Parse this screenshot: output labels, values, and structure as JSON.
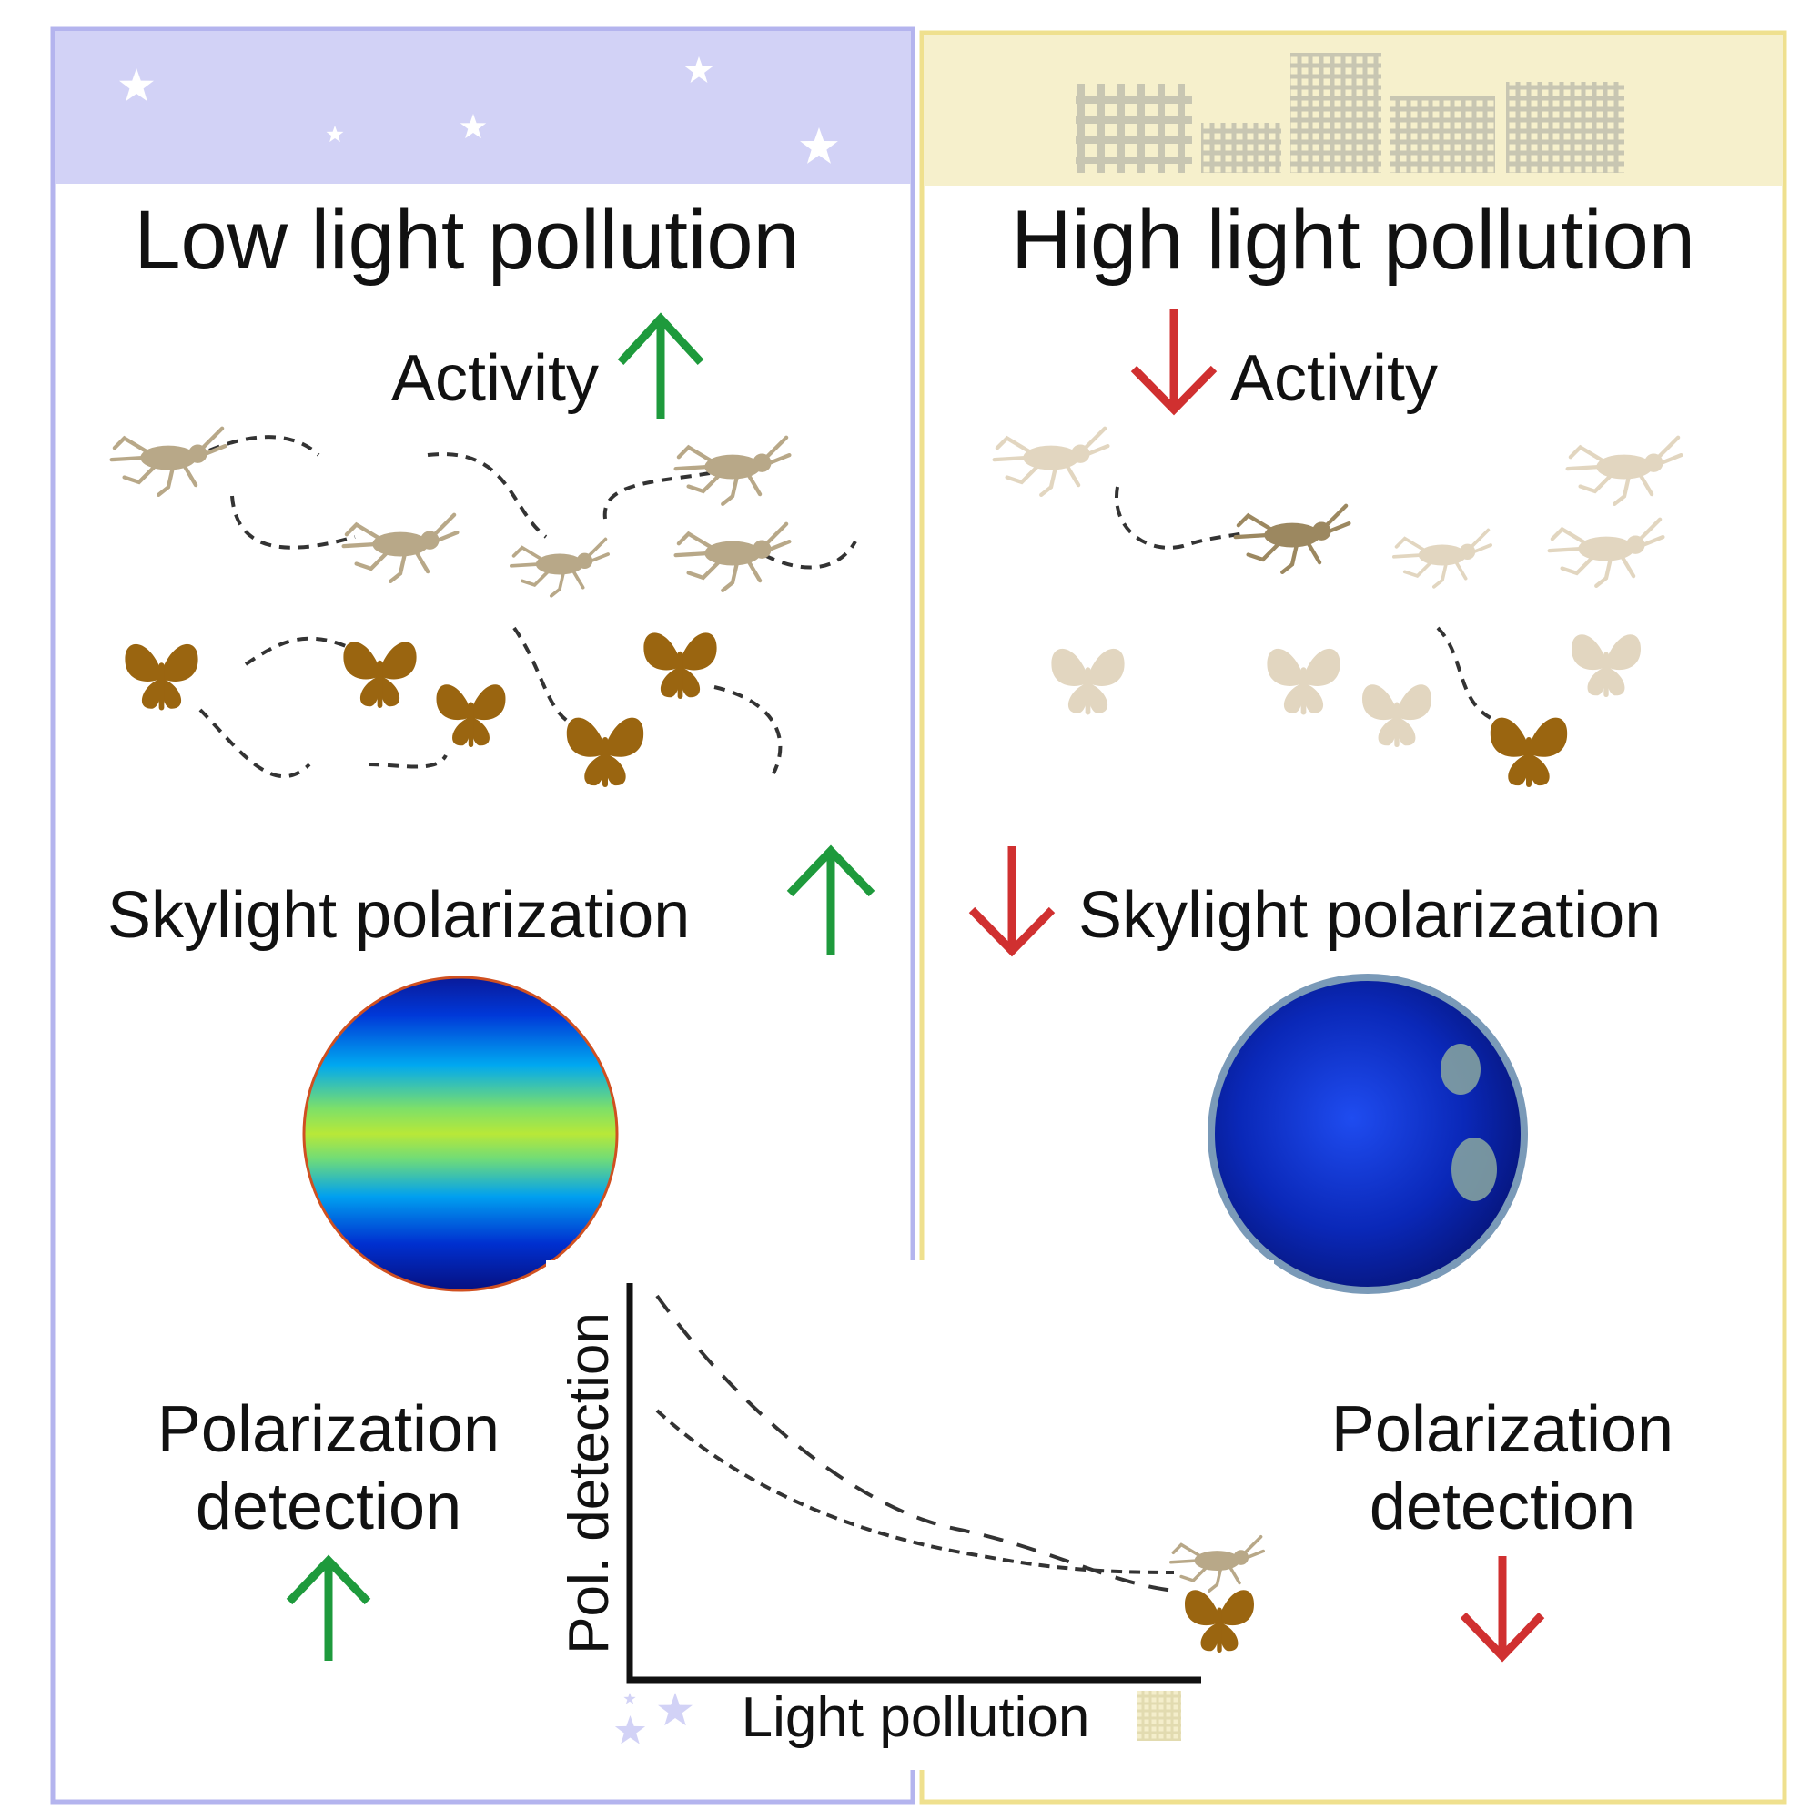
{
  "left_panel": {
    "title": "Low light pollution",
    "activity_label": "Activity",
    "activity_trend": "up",
    "skylight_label": "Skylight polarization",
    "skylight_trend": "up",
    "detection_line1": "Polarization",
    "detection_line2": "detection",
    "detection_trend": "up",
    "header_icon": "stars-icon"
  },
  "right_panel": {
    "title": "High light pollution",
    "activity_label": "Activity",
    "activity_trend": "down",
    "skylight_label": "Skylight polarization",
    "skylight_trend": "down",
    "detection_line1": "Polarization",
    "detection_line2": "detection",
    "detection_trend": "down",
    "header_icon": "city-buildings-icon"
  },
  "graph": {
    "y_label": "Pol. detection",
    "x_label": "Light pollution",
    "curves": [
      "cricket",
      "moth"
    ]
  },
  "colors": {
    "low_band": "#d2d2f6",
    "low_border": "#b4b4ee",
    "high_band": "#f6f0cc",
    "high_border": "#efe08e",
    "up_arrow": "#1e9a3c",
    "down_arrow": "#d03030",
    "cricket": "#b8a888",
    "moth": "#9a6510",
    "faded_insect": "#e2d6c0"
  }
}
